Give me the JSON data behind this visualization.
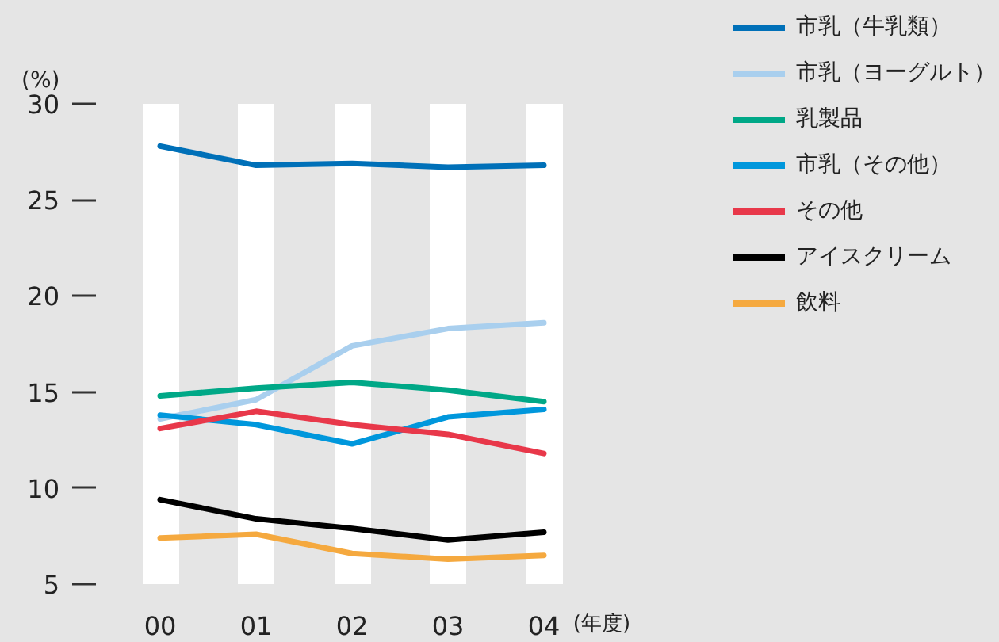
{
  "chart_data": {
    "type": "line",
    "ylabel": "(%)",
    "xlabel": "(年度)",
    "categories": [
      "00",
      "01",
      "02",
      "03",
      "04"
    ],
    "ylim": [
      5,
      30
    ],
    "yticks": [
      5,
      10,
      15,
      20,
      25,
      30
    ],
    "grid": "x",
    "legend": "top right",
    "series": [
      {
        "name": "市乳（牛乳類）",
        "color": "#0070b8",
        "values": [
          27.8,
          26.8,
          26.9,
          26.7,
          26.8
        ]
      },
      {
        "name": "市乳（ヨーグルト）",
        "color": "#a9cfee",
        "values": [
          13.6,
          14.6,
          17.4,
          18.3,
          18.6
        ]
      },
      {
        "name": "乳製品",
        "color": "#00a887",
        "values": [
          14.8,
          15.2,
          15.5,
          15.1,
          14.5
        ]
      },
      {
        "name": "市乳（その他）",
        "color": "#0097dc",
        "values": [
          13.8,
          13.3,
          12.3,
          13.7,
          14.1
        ]
      },
      {
        "name": "その他",
        "color": "#e8384a",
        "values": [
          13.1,
          14.0,
          13.3,
          12.8,
          11.8
        ]
      },
      {
        "name": "アイスクリーム",
        "color": "#000000",
        "values": [
          9.4,
          8.4,
          7.9,
          7.3,
          7.7
        ]
      },
      {
        "name": "飲料",
        "color": "#f5a93f",
        "values": [
          7.4,
          7.6,
          6.6,
          6.3,
          6.5
        ]
      }
    ]
  }
}
